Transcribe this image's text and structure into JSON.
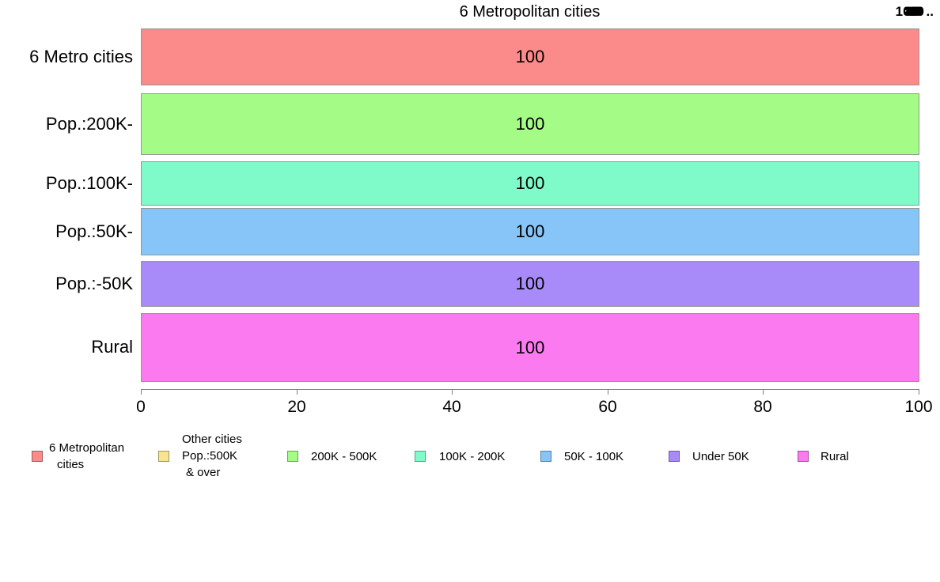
{
  "chart_data": {
    "type": "bar",
    "orientation": "horizontal",
    "title": "6 Metropolitan cities",
    "categories": [
      "6 Metro cities",
      "Pop.:200K-",
      "Pop.:100K-",
      "Pop.:50K-",
      "Pop.:-50K",
      "Rural"
    ],
    "values": [
      100,
      100,
      100,
      100,
      100,
      100
    ],
    "value_labels": [
      "100",
      "100",
      "100",
      "100",
      "100",
      "100"
    ],
    "xlabel": "",
    "ylabel": "",
    "xlim": [
      0,
      100
    ],
    "x_ticks": [
      "0",
      "20",
      "40",
      "60",
      "80",
      "100"
    ],
    "grid": false,
    "legend_position": "bottom",
    "bar_colors": [
      "#fb8a8a",
      "#a4fb86",
      "#7ffbc9",
      "#87c5f8",
      "#a88bf9",
      "#fb7af0"
    ],
    "bar_thickness_px": [
      72,
      78,
      56,
      60,
      58,
      87
    ],
    "legend": [
      {
        "color": "#fb8a8a",
        "lines": [
          "6 Metropolitan",
          "cities"
        ]
      },
      {
        "color": "#f9e48f",
        "lines": [
          "Other cities",
          "Pop.:500K",
          "& over"
        ]
      },
      {
        "color": "#a4fb86",
        "lines": [
          "200K - 500K"
        ]
      },
      {
        "color": "#7ffbc9",
        "lines": [
          "100K - 200K"
        ]
      },
      {
        "color": "#87c5f8",
        "lines": [
          "50K - 100K"
        ]
      },
      {
        "color": "#a88bf9",
        "lines": [
          "Under 50K"
        ]
      },
      {
        "color": "#fb7af0",
        "lines": [
          "Rural"
        ]
      }
    ]
  },
  "artifact": {
    "overlapping_labels": [
      "20",
      "40",
      "60",
      "80",
      "100"
    ],
    "suffix": ".."
  }
}
